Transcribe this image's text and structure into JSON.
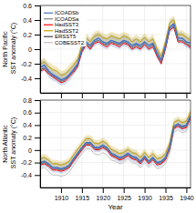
{
  "chart_data": [
    {
      "type": "line",
      "y_label": "North Pacific SST anomaly (°C)",
      "x": [
        1905,
        1906,
        1907,
        1908,
        1909,
        1910,
        1911,
        1912,
        1913,
        1914,
        1915,
        1916,
        1917,
        1918,
        1919,
        1920,
        1921,
        1922,
        1923,
        1924,
        1925,
        1926,
        1927,
        1928,
        1929,
        1930,
        1931,
        1932,
        1933,
        1934,
        1935,
        1936,
        1937,
        1938,
        1939,
        1940,
        1941
      ],
      "xlim": [
        1905,
        1941
      ],
      "xticks": [
        1910,
        1915,
        1920,
        1925,
        1930,
        1935,
        1940
      ],
      "ylim": [
        -0.6,
        0.6
      ],
      "yticks": [
        -0.4,
        -0.2,
        0,
        0.2,
        0.4,
        0.6
      ],
      "grid": true,
      "legend": "upper left",
      "tick_labels": "y",
      "series": [
        {
          "name": "ICOADSb",
          "color": "#4472C4",
          "values": [
            -0.25,
            -0.22,
            -0.3,
            -0.35,
            -0.38,
            -0.42,
            -0.4,
            -0.35,
            -0.28,
            -0.2,
            0.0,
            0.1,
            0.05,
            0.12,
            0.15,
            0.1,
            0.08,
            0.12,
            0.1,
            0.08,
            0.12,
            0.1,
            0.05,
            0.08,
            0.05,
            0.1,
            0.05,
            0.08,
            -0.05,
            -0.15,
            0.05,
            0.3,
            0.35,
            0.15,
            0.15,
            0.1,
            0.08
          ],
          "error": [
            0.08,
            0.08,
            0.08,
            0.08,
            0.08,
            0.08,
            0.08,
            0.08,
            0.08,
            0.08,
            0.08,
            0.08,
            0.08,
            0.08,
            0.08,
            0.08,
            0.08,
            0.08,
            0.08,
            0.08,
            0.08,
            0.08,
            0.08,
            0.08,
            0.08,
            0.08,
            0.08,
            0.08,
            0.08,
            0.08,
            0.08,
            0.08,
            0.08,
            0.08,
            0.08,
            0.08,
            0.08
          ]
        },
        {
          "name": "ICOADSa",
          "color": "#808080",
          "values": [
            -0.28,
            -0.25,
            -0.32,
            -0.37,
            -0.4,
            -0.44,
            -0.42,
            -0.37,
            -0.3,
            -0.22,
            -0.02,
            0.08,
            0.02,
            0.1,
            0.12,
            0.08,
            0.05,
            0.1,
            0.08,
            0.05,
            0.1,
            0.08,
            0.02,
            0.05,
            0.02,
            0.08,
            0.02,
            0.05,
            -0.08,
            -0.18,
            0.02,
            0.28,
            0.32,
            0.12,
            0.12,
            0.08,
            0.05
          ]
        },
        {
          "name": "HadSST3",
          "color": "#FF0000",
          "values": [
            -0.3,
            -0.28,
            -0.34,
            -0.38,
            -0.42,
            -0.46,
            -0.44,
            -0.38,
            -0.32,
            -0.24,
            -0.04,
            0.06,
            0.0,
            0.08,
            0.1,
            0.06,
            0.03,
            0.08,
            0.06,
            0.03,
            0.08,
            0.06,
            0.0,
            0.03,
            0.0,
            0.06,
            0.0,
            0.03,
            -0.1,
            -0.2,
            0.0,
            0.26,
            0.3,
            0.1,
            0.1,
            0.06,
            0.02
          ]
        },
        {
          "name": "HadSST2",
          "color": "#C8A000",
          "values": [
            -0.2,
            -0.18,
            -0.24,
            -0.28,
            -0.3,
            -0.36,
            -0.34,
            -0.28,
            -0.22,
            -0.14,
            0.06,
            0.16,
            0.1,
            0.18,
            0.2,
            0.16,
            0.14,
            0.18,
            0.16,
            0.14,
            0.18,
            0.16,
            0.1,
            0.14,
            0.1,
            0.16,
            0.1,
            0.14,
            0.0,
            -0.1,
            0.1,
            0.36,
            0.4,
            0.2,
            0.2,
            0.16,
            0.12
          ],
          "error": [
            0.06,
            0.06,
            0.06,
            0.06,
            0.06,
            0.06,
            0.06,
            0.06,
            0.06,
            0.06,
            0.06,
            0.06,
            0.06,
            0.06,
            0.06,
            0.06,
            0.06,
            0.06,
            0.06,
            0.06,
            0.06,
            0.06,
            0.06,
            0.06,
            0.06,
            0.06,
            0.06,
            0.06,
            0.06,
            0.06,
            0.06,
            0.06,
            0.06,
            0.06,
            0.06,
            0.06,
            0.06
          ]
        },
        {
          "name": "ERSST5",
          "color": "#404040",
          "values": [
            -0.28,
            -0.26,
            -0.32,
            -0.36,
            -0.4,
            -0.44,
            -0.42,
            -0.36,
            -0.3,
            -0.22,
            -0.02,
            0.08,
            0.02,
            0.1,
            0.12,
            0.08,
            0.06,
            0.1,
            0.08,
            0.06,
            0.1,
            0.08,
            0.02,
            0.06,
            0.02,
            0.08,
            0.02,
            0.06,
            -0.08,
            -0.18,
            0.02,
            0.28,
            0.32,
            0.12,
            0.12,
            0.08,
            0.04
          ]
        },
        {
          "name": "COBESST2",
          "color": "#C0C0C0",
          "values": [
            -0.22,
            -0.2,
            -0.28,
            -0.32,
            -0.36,
            -0.38,
            -0.36,
            -0.3,
            -0.24,
            -0.16,
            0.04,
            0.14,
            0.08,
            0.16,
            0.18,
            0.14,
            0.12,
            0.16,
            0.14,
            0.12,
            0.16,
            0.14,
            0.08,
            0.12,
            0.08,
            0.14,
            0.08,
            0.12,
            -0.02,
            -0.12,
            0.08,
            0.3,
            0.35,
            0.15,
            0.15,
            0.14,
            0.1
          ]
        }
      ]
    },
    {
      "type": "line",
      "x_label": "Year",
      "y_label": "North Atlantic SST anomaly (°C)",
      "x": [
        1905,
        1906,
        1907,
        1908,
        1909,
        1910,
        1911,
        1912,
        1913,
        1914,
        1915,
        1916,
        1917,
        1918,
        1919,
        1920,
        1921,
        1922,
        1923,
        1924,
        1925,
        1926,
        1927,
        1928,
        1929,
        1930,
        1931,
        1932,
        1933,
        1934,
        1935,
        1936,
        1937,
        1938,
        1939,
        1940,
        1941
      ],
      "xlim": [
        1905,
        1941
      ],
      "xticks": [
        1910,
        1915,
        1920,
        1925,
        1930,
        1935,
        1940
      ],
      "ylim": [
        -0.6,
        0.8
      ],
      "yticks": [
        -0.4,
        -0.2,
        0,
        0.2,
        0.4,
        0.6,
        0.8
      ],
      "grid": true,
      "series": [
        {
          "color": "#4472C4",
          "values": [
            -0.2,
            -0.18,
            -0.22,
            -0.28,
            -0.28,
            -0.3,
            -0.28,
            -0.24,
            -0.14,
            -0.05,
            0.04,
            0.12,
            0.12,
            0.05,
            0.04,
            0.08,
            0.04,
            -0.05,
            -0.08,
            -0.12,
            -0.1,
            -0.05,
            -0.1,
            -0.12,
            -0.18,
            -0.1,
            -0.18,
            -0.12,
            -0.2,
            -0.18,
            -0.12,
            0.05,
            0.38,
            0.42,
            0.38,
            0.4,
            0.55
          ],
          "error": [
            0.08,
            0.08,
            0.08,
            0.08,
            0.08,
            0.08,
            0.08,
            0.08,
            0.08,
            0.08,
            0.08,
            0.08,
            0.08,
            0.08,
            0.08,
            0.08,
            0.08,
            0.08,
            0.08,
            0.08,
            0.08,
            0.08,
            0.08,
            0.08,
            0.08,
            0.08,
            0.08,
            0.08,
            0.08,
            0.08,
            0.08,
            0.08,
            0.08,
            0.08,
            0.08,
            0.08,
            0.08
          ]
        },
        {
          "color": "#808080",
          "values": [
            -0.22,
            -0.2,
            -0.24,
            -0.3,
            -0.3,
            -0.32,
            -0.3,
            -0.26,
            -0.16,
            -0.07,
            0.02,
            0.1,
            0.1,
            0.03,
            0.02,
            0.06,
            0.02,
            -0.07,
            -0.1,
            -0.14,
            -0.12,
            -0.07,
            -0.12,
            -0.14,
            -0.2,
            -0.12,
            -0.2,
            -0.14,
            -0.22,
            -0.2,
            -0.14,
            0.03,
            0.36,
            0.4,
            0.36,
            0.38,
            0.53
          ]
        },
        {
          "color": "#FF0000",
          "values": [
            -0.24,
            -0.22,
            -0.26,
            -0.32,
            -0.32,
            -0.34,
            -0.32,
            -0.28,
            -0.18,
            -0.09,
            0.0,
            0.08,
            0.08,
            0.01,
            0.0,
            0.04,
            0.0,
            -0.09,
            -0.12,
            -0.16,
            -0.14,
            -0.09,
            -0.14,
            -0.16,
            -0.22,
            -0.14,
            -0.22,
            -0.16,
            -0.24,
            -0.22,
            -0.16,
            0.01,
            0.34,
            0.38,
            0.34,
            0.36,
            0.51
          ]
        },
        {
          "color": "#C8A000",
          "values": [
            -0.14,
            -0.12,
            -0.16,
            -0.22,
            -0.22,
            -0.24,
            -0.22,
            -0.18,
            -0.08,
            0.01,
            0.1,
            0.18,
            0.18,
            0.11,
            0.1,
            0.14,
            0.1,
            0.01,
            -0.02,
            -0.06,
            -0.04,
            0.01,
            -0.04,
            -0.06,
            -0.12,
            -0.04,
            -0.12,
            -0.06,
            -0.14,
            -0.12,
            -0.06,
            0.11,
            0.44,
            0.48,
            0.44,
            0.46,
            0.61
          ],
          "error": [
            0.06,
            0.06,
            0.06,
            0.06,
            0.06,
            0.06,
            0.06,
            0.06,
            0.06,
            0.06,
            0.06,
            0.06,
            0.06,
            0.06,
            0.06,
            0.06,
            0.06,
            0.06,
            0.06,
            0.06,
            0.06,
            0.06,
            0.06,
            0.06,
            0.06,
            0.06,
            0.06,
            0.06,
            0.06,
            0.06,
            0.06,
            0.06,
            0.06,
            0.06,
            0.06,
            0.06,
            0.06
          ]
        },
        {
          "color": "#404040",
          "values": [
            -0.22,
            -0.2,
            -0.24,
            -0.3,
            -0.3,
            -0.32,
            -0.3,
            -0.26,
            -0.16,
            -0.07,
            0.02,
            0.1,
            0.1,
            0.03,
            0.02,
            0.06,
            0.02,
            -0.07,
            -0.1,
            -0.14,
            -0.12,
            -0.07,
            -0.12,
            -0.14,
            -0.2,
            -0.12,
            -0.2,
            -0.14,
            -0.22,
            -0.2,
            -0.14,
            0.03,
            0.36,
            0.4,
            0.36,
            0.38,
            0.53
          ]
        },
        {
          "color": "#C0C0C0",
          "values": [
            -0.3,
            -0.28,
            -0.34,
            -0.4,
            -0.4,
            -0.42,
            -0.4,
            -0.35,
            -0.25,
            -0.15,
            -0.06,
            0.02,
            0.02,
            -0.06,
            -0.08,
            -0.04,
            -0.08,
            -0.16,
            -0.18,
            -0.22,
            -0.2,
            -0.14,
            -0.2,
            -0.22,
            -0.28,
            -0.2,
            -0.28,
            -0.22,
            -0.3,
            -0.28,
            -0.22,
            -0.06,
            0.28,
            0.32,
            0.28,
            0.3,
            0.46
          ]
        }
      ]
    }
  ]
}
